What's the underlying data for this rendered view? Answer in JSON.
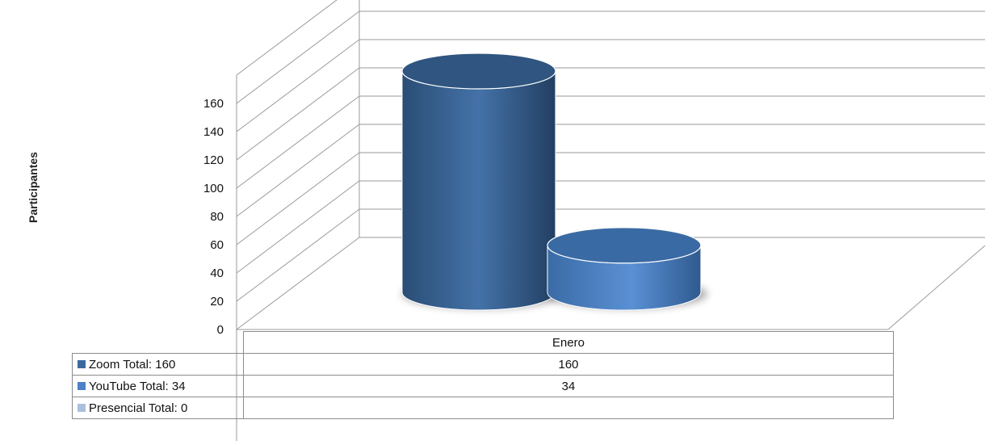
{
  "chart_data": {
    "type": "bar",
    "shape": "3d-cylinder",
    "title": "",
    "xlabel": "",
    "ylabel": "Participantes",
    "ylim": [
      0,
      160
    ],
    "yticks": [
      0,
      20,
      40,
      60,
      80,
      100,
      120,
      140,
      160
    ],
    "grid": true,
    "categories": [
      "Enero"
    ],
    "series": [
      {
        "name": "Zoom  Total: 160",
        "values": [
          160
        ],
        "color": "#3d6a9c"
      },
      {
        "name": "YouTube  Total: 34",
        "values": [
          34
        ],
        "color": "#4e82c4"
      },
      {
        "name": "Presencial Total: 0",
        "values": [
          0
        ],
        "color": "#a9bfdf"
      }
    ],
    "data_table": {
      "rows": [
        {
          "label": "Zoom  Total: 160",
          "value": "160"
        },
        {
          "label": "YouTube  Total: 34",
          "value": "34"
        },
        {
          "label": "Presencial Total: 0",
          "value": ""
        }
      ]
    }
  }
}
